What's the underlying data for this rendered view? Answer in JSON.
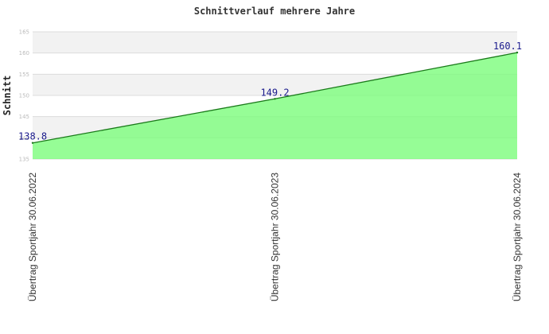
{
  "chart_data": {
    "type": "area",
    "title": "Schnittverlauf mehrere Jahre",
    "xlabel": "",
    "ylabel": "Schnitt",
    "categories": [
      "Übertrag Sportjahr 30.06.2022",
      "Übertrag Sportjahr 30.06.2023",
      "Übertrag Sportjahr 30.06.2024"
    ],
    "values": [
      138.8,
      149.2,
      160.1
    ],
    "data_labels": [
      "138.8",
      "149.2",
      "160.1"
    ],
    "ylim": [
      135,
      165
    ],
    "yticks": [
      "135",
      "140",
      "145",
      "150",
      "155",
      "160",
      "165"
    ],
    "grid": true,
    "colors": {
      "fill": "#7cfc7c",
      "line": "#1a7a1a",
      "band": "#f2f2f2",
      "label": "#1a1a8c"
    }
  }
}
